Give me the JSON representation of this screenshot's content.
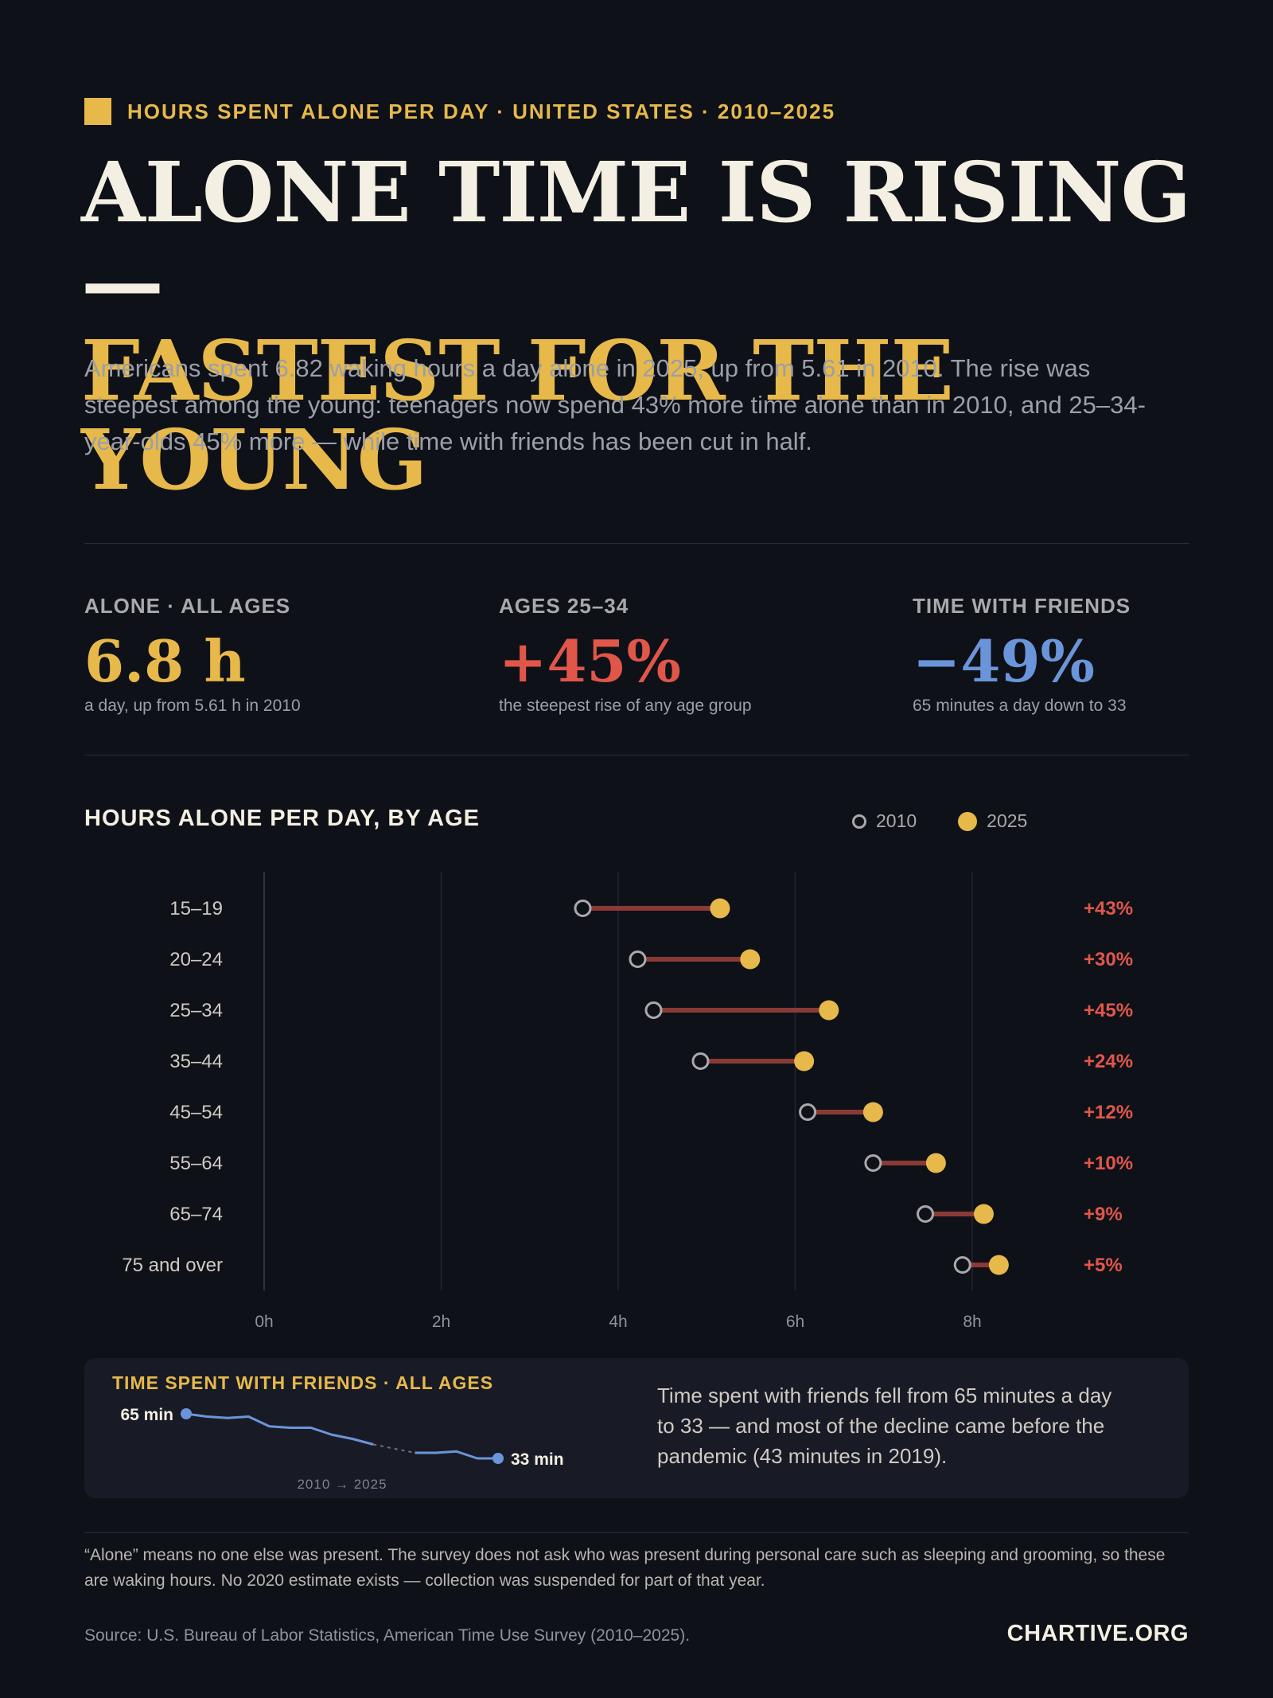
{
  "header": {
    "kicker": "HOURS SPENT ALONE PER DAY · UNITED STATES · 2010–2025",
    "title_line1": "ALONE TIME IS RISING —",
    "title_line2": "FASTEST FOR THE YOUNG",
    "lede": "Americans spent 6.82 waking hours a day alone in 2025, up from 5.61 in 2010. The rise was steepest among the young: teenagers now spend 43% more time alone than in 2010, and 25–34-year-olds 45% more — while time with friends has been cut in half."
  },
  "stats": [
    {
      "label": "ALONE · ALL AGES",
      "value": "6.8 h",
      "note": "a day, up from 5.61 h in 2010",
      "color": "#e7b94a"
    },
    {
      "label": "AGES 25–34",
      "value": "+45%",
      "note": "the steepest rise of any age group",
      "color": "#e0574a"
    },
    {
      "label": "TIME WITH FRIENDS",
      "value": "−49%",
      "note": "65 minutes a day down to 33",
      "color": "#6b95da"
    }
  ],
  "chart": {
    "title": "HOURS ALONE PER DAY, BY AGE",
    "legend": {
      "label_2010": "2010",
      "label_2025": "2025"
    }
  },
  "chart_data": [
    {
      "type": "dumbbell",
      "title": "HOURS ALONE PER DAY, BY AGE",
      "categories": [
        "15–19",
        "20–24",
        "25–34",
        "35–44",
        "45–54",
        "55–64",
        "65–74",
        "75 and over"
      ],
      "series": [
        {
          "name": "2010",
          "values": [
            3.6,
            4.22,
            4.4,
            4.93,
            6.14,
            6.88,
            7.47,
            7.89
          ]
        },
        {
          "name": "2025",
          "values": [
            5.15,
            5.49,
            6.38,
            6.1,
            6.88,
            7.59,
            8.13,
            8.3
          ]
        }
      ],
      "change_labels": [
        "+43%",
        "+30%",
        "+45%",
        "+24%",
        "+12%",
        "+10%",
        "+9%",
        "+5%"
      ],
      "x_ticks": [
        "0h",
        "2h",
        "4h",
        "6h",
        "8h"
      ],
      "xlim": [
        0,
        8
      ],
      "grid": true,
      "legend_position": "top-right",
      "colors": {
        "c2010": "#a9a9ad",
        "c2025": "#e7b94a",
        "connector": "#8a3a36",
        "change": "#e0574a"
      }
    },
    {
      "type": "line",
      "title": "TIME SPENT WITH FRIENDS · ALL AGES",
      "x": [
        2010,
        2011,
        2012,
        2013,
        2014,
        2015,
        2016,
        2017,
        2018,
        2019,
        2020,
        2021,
        2022,
        2023,
        2024,
        2025
      ],
      "values": [
        65,
        63,
        62,
        63,
        56,
        55,
        55,
        50,
        47,
        43,
        null,
        37,
        37,
        38,
        33,
        33
      ],
      "gap_years": [
        2020
      ],
      "start_label": "65 min",
      "end_label": "33 min",
      "period_label": "2010 → 2025",
      "color": "#6b95da"
    }
  ],
  "friends_panel": {
    "title": "TIME SPENT WITH FRIENDS · ALL AGES",
    "text": "Time spent with friends fell from 65 minutes a day to 33 — and most of the decline came before the pandemic (43 minutes in 2019)."
  },
  "footer": {
    "footnote": "“Alone” means no one else was present. The survey does not ask who was present during personal care such as sleeping and grooming, so these are waking hours. No 2020 estimate exists — collection was suspended for part of that year.",
    "source": "Source: U.S. Bureau of Labor Statistics, American Time Use Survey (2010–2025).",
    "brand": "CHARTIVE.ORG"
  }
}
